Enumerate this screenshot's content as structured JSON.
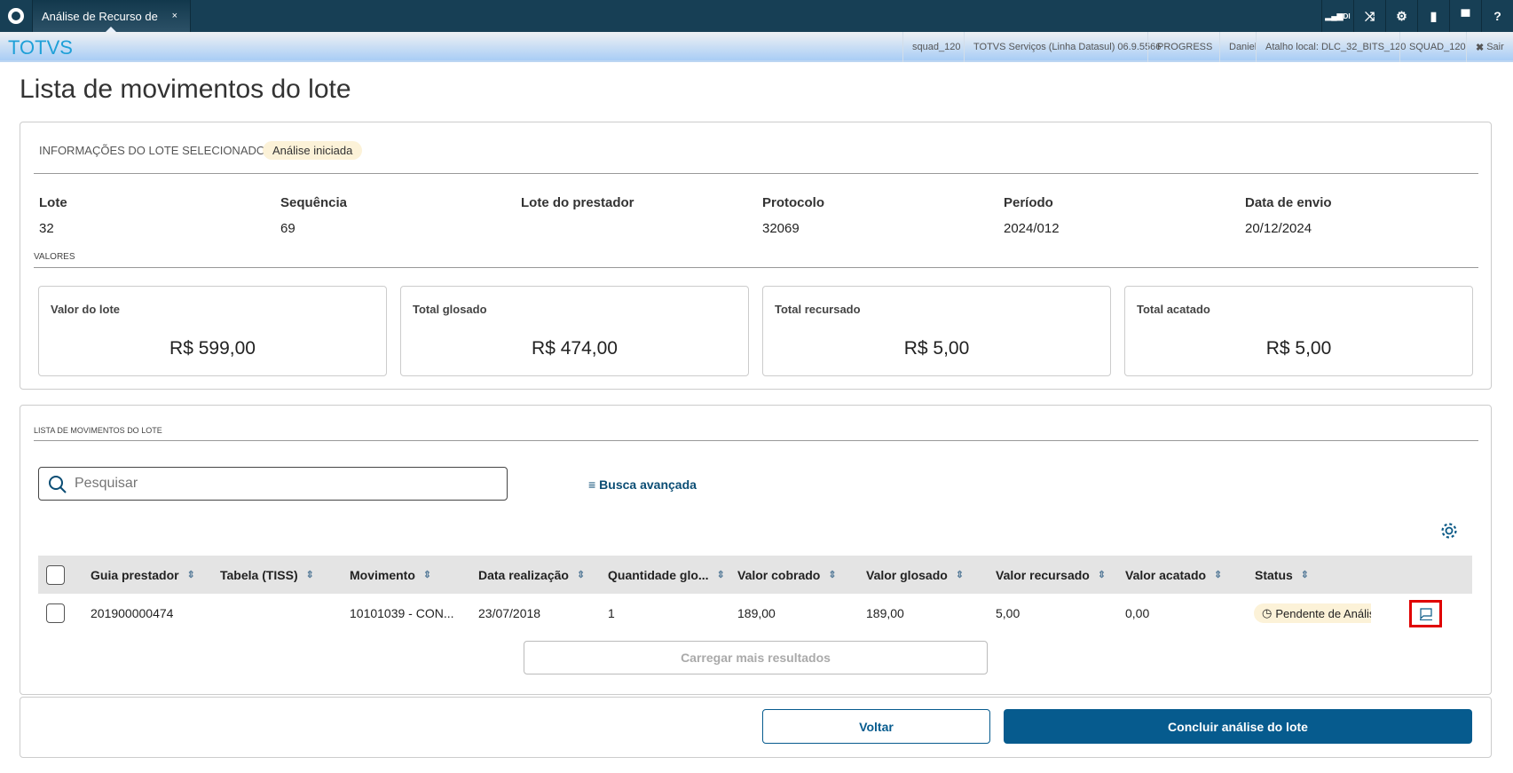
{
  "topbar": {
    "tab_label": "Análise de Recurso de",
    "tab_close": "×",
    "icons": [
      "signal-di-icon",
      "shuffle-icon",
      "gear-icon",
      "document-icon",
      "chat-icon",
      "help-icon"
    ],
    "signal_label": "DI"
  },
  "header": {
    "brand": "TOTVS",
    "items": [
      "squad_120",
      "TOTVS Serviços (Linha Datasul) 06.9.5566",
      "PROGRESS",
      "Daniel",
      "Atalho local: DLC_32_BITS_120",
      "SQUAD_120"
    ],
    "logout": "Sair"
  },
  "page": {
    "title": "Lista de movimentos do lote"
  },
  "info": {
    "section_title": "INFORMAÇÕES DO LOTE SELECIONADO",
    "status_badge": "Análise iniciada",
    "fields": [
      {
        "label": "Lote",
        "value": "32"
      },
      {
        "label": "Sequência",
        "value": "69"
      },
      {
        "label": "Lote do prestador",
        "value": ""
      },
      {
        "label": "Protocolo",
        "value": "32069"
      },
      {
        "label": "Período",
        "value": "2024/012"
      },
      {
        "label": "Data de envio",
        "value": "20/12/2024"
      }
    ],
    "values_title": "VALORES",
    "value_cards": [
      {
        "label": "Valor do lote",
        "value": "R$ 599,00"
      },
      {
        "label": "Total glosado",
        "value": "R$ 474,00"
      },
      {
        "label": "Total recursado",
        "value": "R$ 5,00"
      },
      {
        "label": "Total acatado",
        "value": "R$ 5,00"
      }
    ]
  },
  "list": {
    "section_title": "LISTA DE MOVIMENTOS DO LOTE",
    "search_placeholder": "Pesquisar",
    "advanced_search": "Busca avançada",
    "columns": [
      "Guia prestador",
      "Tabela (TISS)",
      "Movimento",
      "Data realização",
      "Quantidade glo...",
      "Valor cobrado",
      "Valor glosado",
      "Valor recursado",
      "Valor acatado",
      "Status"
    ],
    "rows": [
      {
        "cells": [
          "201900000474",
          "",
          "10101039 - CON...",
          "23/07/2018",
          "1",
          "189,00",
          "189,00",
          "5,00",
          "0,00"
        ],
        "status": "Pendente de Anális"
      }
    ],
    "load_more": "Carregar mais resultados"
  },
  "footer": {
    "back": "Voltar",
    "conclude": "Concluir análise do lote"
  },
  "colors": {
    "topbar": "#173f55",
    "primary": "#065b8e",
    "brand": "#1fa0d8",
    "badge": "#fcf2d8",
    "highlight": "#e00000"
  }
}
